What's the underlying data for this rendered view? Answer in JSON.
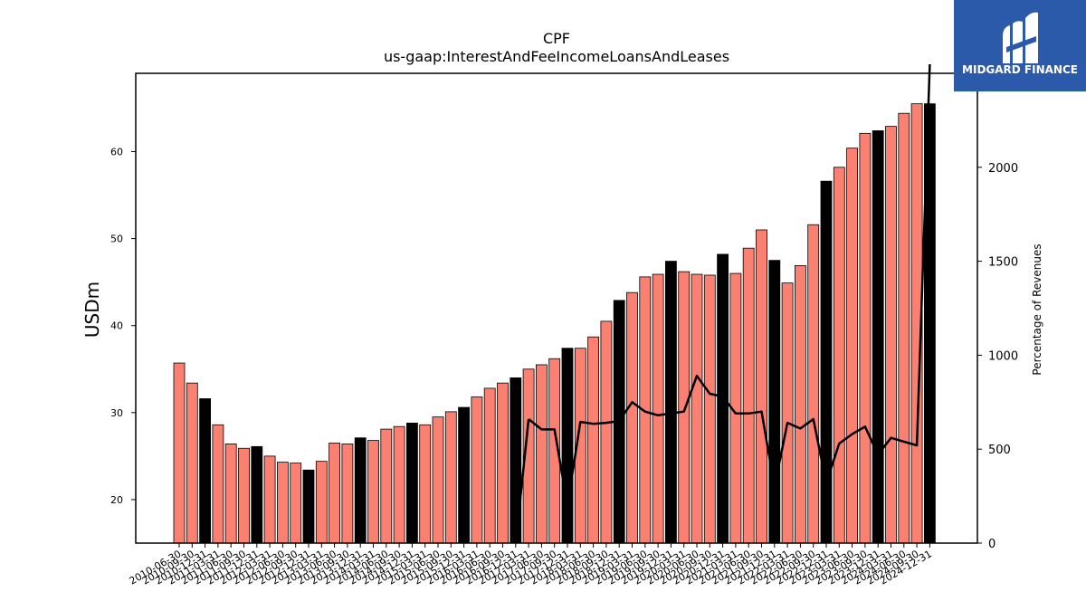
{
  "title": "CPF",
  "subtitle": "us-gaap:InterestAndFeeIncomeLoansAndLeases",
  "logo": {
    "text": "MIDGARD FINANCE",
    "background": "#2c5aab"
  },
  "chart_data": {
    "type": "bar",
    "ylabel": "USDm",
    "y2label": "Percentage of Revenues",
    "ylim": [
      15,
      69
    ],
    "y2lim": [
      0,
      2500
    ],
    "yticks": [
      20,
      30,
      40,
      50,
      60
    ],
    "y2ticks": [
      0,
      500,
      1000,
      1500,
      2000
    ],
    "colors": {
      "quarter_bar": "#fa8072",
      "year_end_bar": "#000000",
      "line": "#000000"
    },
    "categories": [
      "2010-06-30",
      "2010-09-30",
      "2010-12-31",
      "2011-03-31",
      "2011-06-30",
      "2011-09-30",
      "2011-12-31",
      "2012-03-31",
      "2012-06-30",
      "2012-09-30",
      "2012-12-31",
      "2013-03-31",
      "2013-06-30",
      "2013-09-30",
      "2013-12-31",
      "2014-03-31",
      "2014-06-30",
      "2014-09-30",
      "2014-12-31",
      "2015-03-31",
      "2015-06-30",
      "2015-09-30",
      "2015-12-31",
      "2016-03-31",
      "2016-06-30",
      "2016-09-30",
      "2016-12-31",
      "2017-03-31",
      "2017-06-30",
      "2017-09-30",
      "2017-12-31",
      "2018-03-31",
      "2018-06-30",
      "2018-09-30",
      "2018-12-31",
      "2019-03-31",
      "2019-06-30",
      "2019-09-30",
      "2019-12-31",
      "2020-03-31",
      "2020-06-30",
      "2020-09-30",
      "2020-12-31",
      "2021-03-31",
      "2021-06-30",
      "2021-09-30",
      "2021-12-31",
      "2022-03-31",
      "2022-06-30",
      "2022-09-30",
      "2022-12-31",
      "2023-03-31",
      "2023-06-30",
      "2023-09-30",
      "2023-12-31",
      "2024-03-31",
      "2024-06-30",
      "2024-09-30",
      "2024-12-31"
    ],
    "values": [
      35.7,
      33.4,
      31.6,
      28.6,
      26.4,
      25.9,
      26.1,
      25.0,
      24.3,
      24.2,
      23.4,
      24.4,
      26.5,
      26.4,
      27.1,
      26.8,
      28.1,
      28.4,
      28.8,
      28.6,
      29.5,
      30.1,
      30.6,
      31.8,
      32.8,
      33.4,
      34.0,
      35.0,
      35.5,
      36.2,
      37.4,
      37.4,
      38.7,
      40.5,
      42.9,
      43.8,
      45.6,
      45.9,
      47.4,
      46.2,
      45.9,
      45.8,
      48.2,
      46.0,
      48.9,
      51.0,
      47.5,
      44.9,
      46.9,
      51.6,
      56.6,
      58.2,
      60.4,
      62.1,
      62.4,
      62.9,
      64.4,
      65.5,
      65.5
    ],
    "year_end": [
      false,
      false,
      true,
      false,
      false,
      false,
      true,
      false,
      false,
      false,
      true,
      false,
      false,
      false,
      true,
      false,
      false,
      false,
      true,
      false,
      false,
      false,
      true,
      false,
      false,
      false,
      true,
      false,
      false,
      false,
      true,
      false,
      false,
      false,
      true,
      false,
      false,
      false,
      true,
      false,
      false,
      false,
      true,
      false,
      false,
      false,
      true,
      false,
      false,
      false,
      true,
      false,
      false,
      false,
      true,
      false,
      false,
      false,
      true
    ],
    "percentage_of_revenues": [
      null,
      null,
      null,
      null,
      null,
      null,
      null,
      null,
      null,
      null,
      null,
      null,
      null,
      null,
      null,
      null,
      null,
      null,
      null,
      null,
      null,
      null,
      null,
      null,
      null,
      null,
      null,
      null,
      null,
      null,
      null,
      null,
      null,
      null,
      null,
      null,
      null,
      null,
      null,
      null,
      null,
      null,
      null,
      null,
      null,
      null,
      null,
      null,
      null,
      null,
      null,
      null,
      null,
      null,
      null,
      null,
      null,
      null,
      null
    ],
    "line_x_start": 3,
    "line_values": [
      null,
      null,
      null,
      null,
      null,
      null,
      null,
      null,
      null,
      null,
      null,
      null,
      null,
      null,
      null,
      null,
      null,
      null,
      null,
      null,
      null,
      null,
      null,
      null,
      null,
      null,
      null,
      null,
      null,
      null,
      null,
      null,
      null,
      null,
      null,
      null,
      null,
      null,
      null,
      null,
      null,
      null,
      null,
      null,
      null,
      null,
      null,
      null,
      null,
      null,
      null,
      null,
      null,
      null,
      null,
      null,
      null,
      null,
      null
    ]
  }
}
